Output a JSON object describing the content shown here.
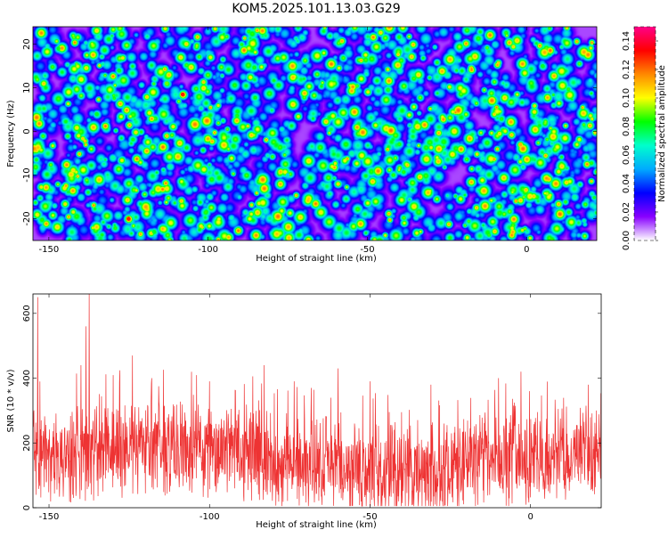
{
  "chart_data": [
    {
      "type": "heatmap",
      "title": "KOM5.2025.101.13.03.G29",
      "xlabel": "Height of straight line (km)",
      "ylabel": "Frequency (Hz)",
      "xlim": [
        -155,
        22
      ],
      "ylim": [
        -25,
        24
      ],
      "x_ticks": [
        -150,
        -100,
        -50,
        0
      ],
      "y_ticks": [
        -20,
        -10,
        0,
        10,
        20
      ],
      "colorbar": {
        "label": "Normalized spectral amplitude",
        "range": [
          0,
          0.15
        ],
        "ticks": [
          0.0,
          0.02,
          0.04,
          0.06,
          0.08,
          0.1,
          0.12,
          0.14
        ],
        "tick_labels": [
          "0.00",
          "0.02",
          "0.04",
          "0.06",
          "0.08",
          "0.10",
          "0.12",
          "0.14"
        ],
        "colors": [
          "#ffffff",
          "#8800ff",
          "#0000ff",
          "#00aaff",
          "#00ffcc",
          "#00ff00",
          "#ffff00",
          "#ff8800",
          "#ff0000",
          "#ff0088"
        ]
      },
      "hotspots": [
        {
          "x": -108,
          "y": 8.5,
          "value": 0.13
        },
        {
          "x": -125,
          "y": -20,
          "value": 0.13
        },
        {
          "x": -2,
          "y": -3,
          "value": 0.11
        },
        {
          "x": -113,
          "y": 11,
          "value": 0.09
        },
        {
          "x": -135,
          "y": 4,
          "value": 0.08
        },
        {
          "x": -147,
          "y": 19,
          "value": 0.08
        },
        {
          "x": 5,
          "y": 15,
          "value": 0.08
        },
        {
          "x": -128,
          "y": 14,
          "value": 0.08
        },
        {
          "x": -117,
          "y": -23,
          "value": 0.08
        },
        {
          "x": -55,
          "y": -5,
          "value": 0.07
        },
        {
          "x": -40,
          "y": 14,
          "value": 0.07
        },
        {
          "x": -130,
          "y": -6,
          "value": 0.07
        },
        {
          "x": -112,
          "y": -8,
          "value": 0.07
        },
        {
          "x": 15,
          "y": -15,
          "value": 0.07
        },
        {
          "x": -85,
          "y": 2,
          "value": 0.07
        },
        {
          "x": -25,
          "y": 13,
          "value": 0.07
        },
        {
          "x": -70,
          "y": 14,
          "value": 0.06
        },
        {
          "x": -60,
          "y": 22,
          "value": 0.06
        },
        {
          "x": -20,
          "y": -14,
          "value": 0.06
        },
        {
          "x": -95,
          "y": -15,
          "value": 0.06
        },
        {
          "x": -152,
          "y": -22,
          "value": 0.06
        },
        {
          "x": -30,
          "y": -22,
          "value": 0.06
        },
        {
          "x": 8,
          "y": 2,
          "value": 0.06
        },
        {
          "x": -75,
          "y": -10,
          "value": 0.06
        },
        {
          "x": -140,
          "y": -15,
          "value": 0.06
        },
        {
          "x": -100,
          "y": 18,
          "value": 0.06
        },
        {
          "x": -10,
          "y": 20,
          "value": 0.06
        },
        {
          "x": -45,
          "y": 2,
          "value": 0.06
        }
      ]
    },
    {
      "type": "line",
      "title": "",
      "xlabel": "Height of straight line (km)",
      "ylabel": "SNR (10 * v/v)",
      "xlim": [
        -155,
        22
      ],
      "ylim": [
        0,
        660
      ],
      "x_ticks": [
        -150,
        -100,
        -50,
        0
      ],
      "y_ticks": [
        0,
        200,
        400,
        600
      ],
      "color": "#ee3333",
      "peaks": [
        {
          "x": -153.5,
          "y": 650
        },
        {
          "x": -137.5,
          "y": 660
        },
        {
          "x": -138.5,
          "y": 560
        },
        {
          "x": -124,
          "y": 470
        },
        {
          "x": -140,
          "y": 440
        },
        {
          "x": -83,
          "y": 440
        },
        {
          "x": -60,
          "y": 430
        },
        {
          "x": -3,
          "y": 420
        },
        {
          "x": 18,
          "y": 380
        },
        {
          "x": -118,
          "y": 400
        },
        {
          "x": -100,
          "y": 390
        },
        {
          "x": -10,
          "y": 400
        },
        {
          "x": -31,
          "y": 380
        },
        {
          "x": -50,
          "y": 390
        }
      ]
    }
  ]
}
